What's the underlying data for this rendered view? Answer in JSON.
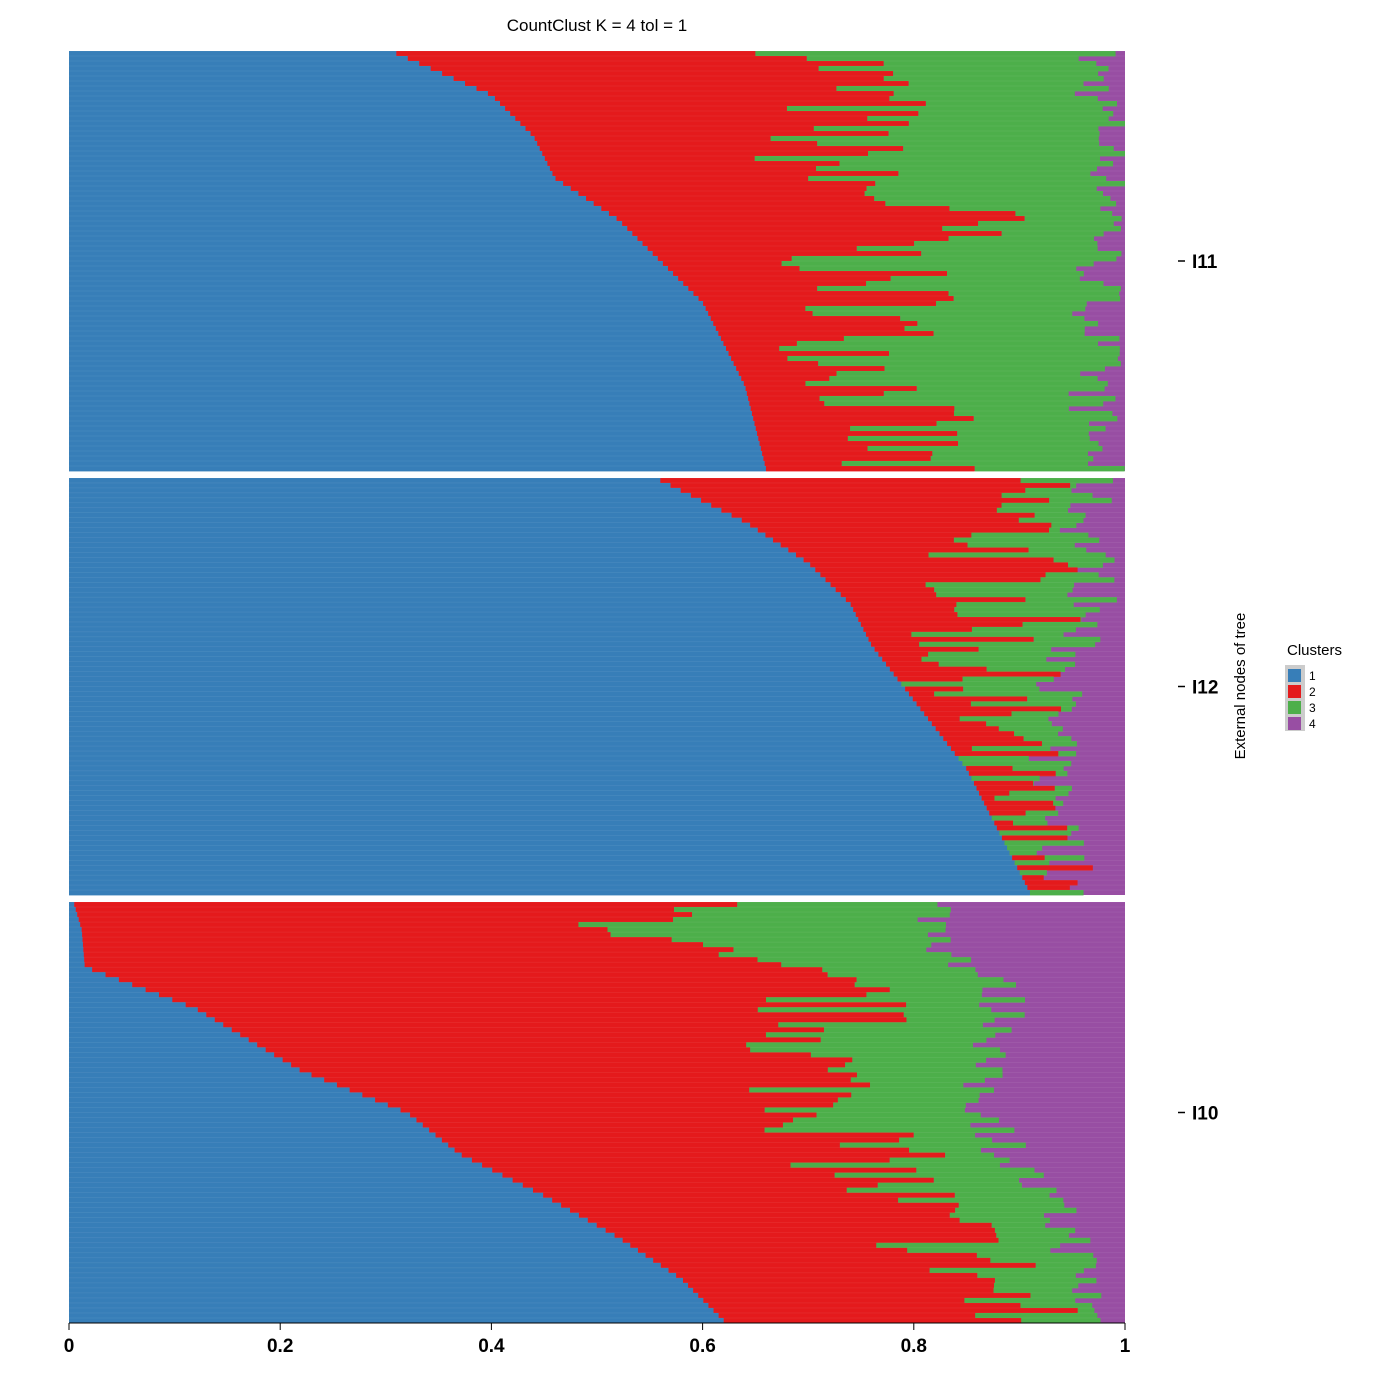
{
  "chart_data": {
    "type": "bar",
    "orientation": "horizontal",
    "stacked": true,
    "title": "CountClust K =  4 tol =  1",
    "ylabel": "External nodes of tree",
    "xlim": [
      0,
      1
    ],
    "x_ticks": [
      "0",
      "0.2",
      "0.4",
      "0.6",
      "0.8",
      "1"
    ],
    "x_tick_values": [
      0,
      0.2,
      0.4,
      0.6,
      0.8,
      1
    ],
    "legend": {
      "title": "Clusters",
      "placement": "right",
      "items": [
        {
          "label": "1",
          "color": "#377EB8"
        },
        {
          "label": "2",
          "color": "#E41A1C"
        },
        {
          "label": "3",
          "color": "#4DAF4A"
        },
        {
          "label": "4",
          "color": "#984EA3"
        }
      ]
    },
    "bars_per_group": 84,
    "groups": [
      {
        "name": "I11",
        "cluster1_boundary": [
          [
            0,
            0.31
          ],
          [
            0.1,
            0.4
          ],
          [
            0.2,
            0.44
          ],
          [
            0.3,
            0.46
          ],
          [
            0.4,
            0.52
          ],
          [
            0.5,
            0.56
          ],
          [
            0.6,
            0.6
          ],
          [
            0.7,
            0.62
          ],
          [
            0.8,
            0.64
          ],
          [
            0.9,
            0.65
          ],
          [
            1,
            0.66
          ]
        ],
        "cluster2_end": [
          [
            0,
            0.73
          ],
          [
            0.1,
            0.75
          ],
          [
            0.2,
            0.72
          ],
          [
            0.3,
            0.72
          ],
          [
            0.4,
            0.85
          ],
          [
            0.5,
            0.74
          ],
          [
            0.6,
            0.78
          ],
          [
            0.7,
            0.75
          ],
          [
            0.8,
            0.77
          ],
          [
            0.9,
            0.78
          ],
          [
            1,
            0.78
          ]
        ],
        "cluster3_end": [
          [
            0,
            0.97
          ],
          [
            0.1,
            0.975
          ],
          [
            0.2,
            0.985
          ],
          [
            0.3,
            0.99
          ],
          [
            0.4,
            0.99
          ],
          [
            0.5,
            0.975
          ],
          [
            0.6,
            0.975
          ],
          [
            0.7,
            0.975
          ],
          [
            0.8,
            0.97
          ],
          [
            0.9,
            0.97
          ],
          [
            1,
            0.975
          ]
        ]
      },
      {
        "name": "I12",
        "cluster1_boundary": [
          [
            0,
            0.56
          ],
          [
            0.1,
            0.64
          ],
          [
            0.2,
            0.7
          ],
          [
            0.3,
            0.74
          ],
          [
            0.4,
            0.76
          ],
          [
            0.5,
            0.79
          ],
          [
            0.6,
            0.82
          ],
          [
            0.7,
            0.85
          ],
          [
            0.8,
            0.87
          ],
          [
            0.9,
            0.89
          ],
          [
            1,
            0.91
          ]
        ],
        "cluster2_end": [
          [
            0,
            0.88
          ],
          [
            0.1,
            0.89
          ],
          [
            0.2,
            0.88
          ],
          [
            0.3,
            0.89
          ],
          [
            0.4,
            0.86
          ],
          [
            0.5,
            0.86
          ],
          [
            0.6,
            0.87
          ],
          [
            0.7,
            0.86
          ],
          [
            0.8,
            0.875
          ],
          [
            0.9,
            0.89
          ],
          [
            1,
            0.91
          ]
        ],
        "cluster3_end": [
          [
            0,
            0.97
          ],
          [
            0.1,
            0.96
          ],
          [
            0.2,
            0.97
          ],
          [
            0.3,
            0.97
          ],
          [
            0.4,
            0.95
          ],
          [
            0.5,
            0.94
          ],
          [
            0.6,
            0.93
          ],
          [
            0.7,
            0.93
          ],
          [
            0.8,
            0.94
          ],
          [
            0.9,
            0.94
          ],
          [
            1,
            0.95
          ]
        ]
      },
      {
        "name": "I10",
        "cluster1_boundary": [
          [
            0,
            0.005
          ],
          [
            0.06,
            0.012
          ],
          [
            0.15,
            0.015
          ],
          [
            0.25,
            0.12
          ],
          [
            0.4,
            0.22
          ],
          [
            0.5,
            0.32
          ],
          [
            0.6,
            0.37
          ],
          [
            0.7,
            0.45
          ],
          [
            0.8,
            0.52
          ],
          [
            0.9,
            0.58
          ],
          [
            1,
            0.62
          ]
        ],
        "cluster2_end": [
          [
            0,
            0.56
          ],
          [
            0.1,
            0.55
          ],
          [
            0.2,
            0.72
          ],
          [
            0.3,
            0.72
          ],
          [
            0.4,
            0.7
          ],
          [
            0.5,
            0.73
          ],
          [
            0.6,
            0.75
          ],
          [
            0.7,
            0.78
          ],
          [
            0.8,
            0.83
          ],
          [
            0.9,
            0.87
          ],
          [
            1,
            0.89
          ]
        ],
        "cluster3_end": [
          [
            0,
            0.82
          ],
          [
            0.1,
            0.83
          ],
          [
            0.2,
            0.88
          ],
          [
            0.3,
            0.89
          ],
          [
            0.4,
            0.86
          ],
          [
            0.5,
            0.87
          ],
          [
            0.6,
            0.89
          ],
          [
            0.7,
            0.92
          ],
          [
            0.8,
            0.95
          ],
          [
            0.9,
            0.96
          ],
          [
            1,
            0.97
          ]
        ]
      }
    ]
  }
}
